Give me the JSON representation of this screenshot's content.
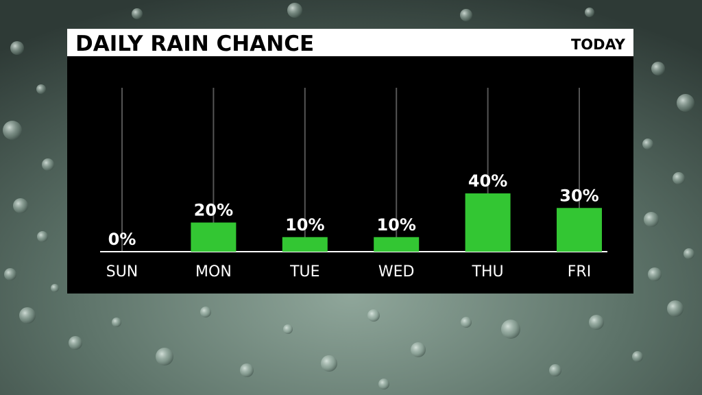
{
  "chart_data": {
    "type": "bar",
    "title": "DAILY RAIN CHANCE",
    "subtitle": "TODAY",
    "categories": [
      "SUN",
      "MON",
      "TUE",
      "WED",
      "THU",
      "FRI"
    ],
    "values": [
      0,
      20,
      10,
      10,
      40,
      30
    ],
    "value_labels": [
      "0%",
      "20%",
      "10%",
      "10%",
      "40%",
      "30%"
    ],
    "color": "#33c633"
  }
}
